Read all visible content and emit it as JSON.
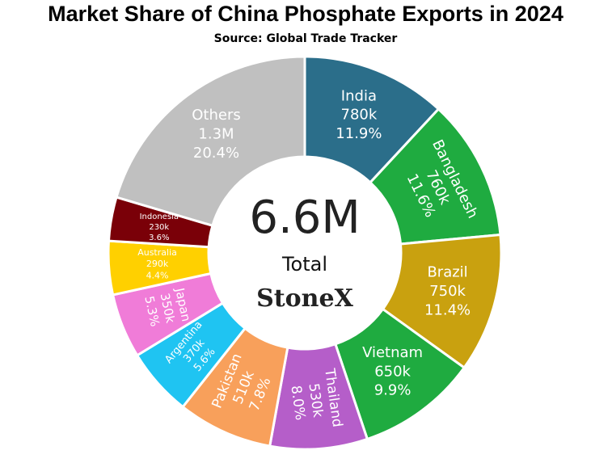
{
  "chart_data": {
    "type": "donut",
    "title": "Market Share of China Phosphate Exports in 2024",
    "subtitle": "Source: Global Trade Tracker",
    "categories": [
      "India",
      "Bangladesh",
      "Brazil",
      "Vietnam",
      "Thailand",
      "Pakistan",
      "Argentina",
      "Japan",
      "Australia",
      "Indonesia",
      "Others"
    ],
    "values": [
      11.9,
      11.6,
      11.4,
      9.9,
      8.0,
      7.8,
      5.6,
      5.3,
      4.4,
      3.6,
      20.4
    ],
    "value_labels": [
      "11.9%",
      "11.6%",
      "11.4%",
      "9.9%",
      "8.0%",
      "7.8%",
      "5.6%",
      "5.3%",
      "4.4%",
      "3.6%",
      "20.4%"
    ],
    "amounts": [
      780000,
      760000,
      750000,
      650000,
      530000,
      510000,
      370000,
      350000,
      290000,
      230000,
      1300000
    ],
    "amount_labels": [
      "780k",
      "760k",
      "750k",
      "650k",
      "530k",
      "510k",
      "370k",
      "350k",
      "290k",
      "230k",
      "1.3M"
    ],
    "colors": [
      "#2b6e8a",
      "#1fab40",
      "#c9a10f",
      "#1fab40",
      "#b55ec9",
      "#f8a05b",
      "#1fc4f2",
      "#f07cd8",
      "#ffd000",
      "#7a0008",
      "#c0c0c0"
    ],
    "total": 6600000,
    "total_label": "6.6M",
    "total_caption": "Total",
    "logo": "StoneX"
  }
}
